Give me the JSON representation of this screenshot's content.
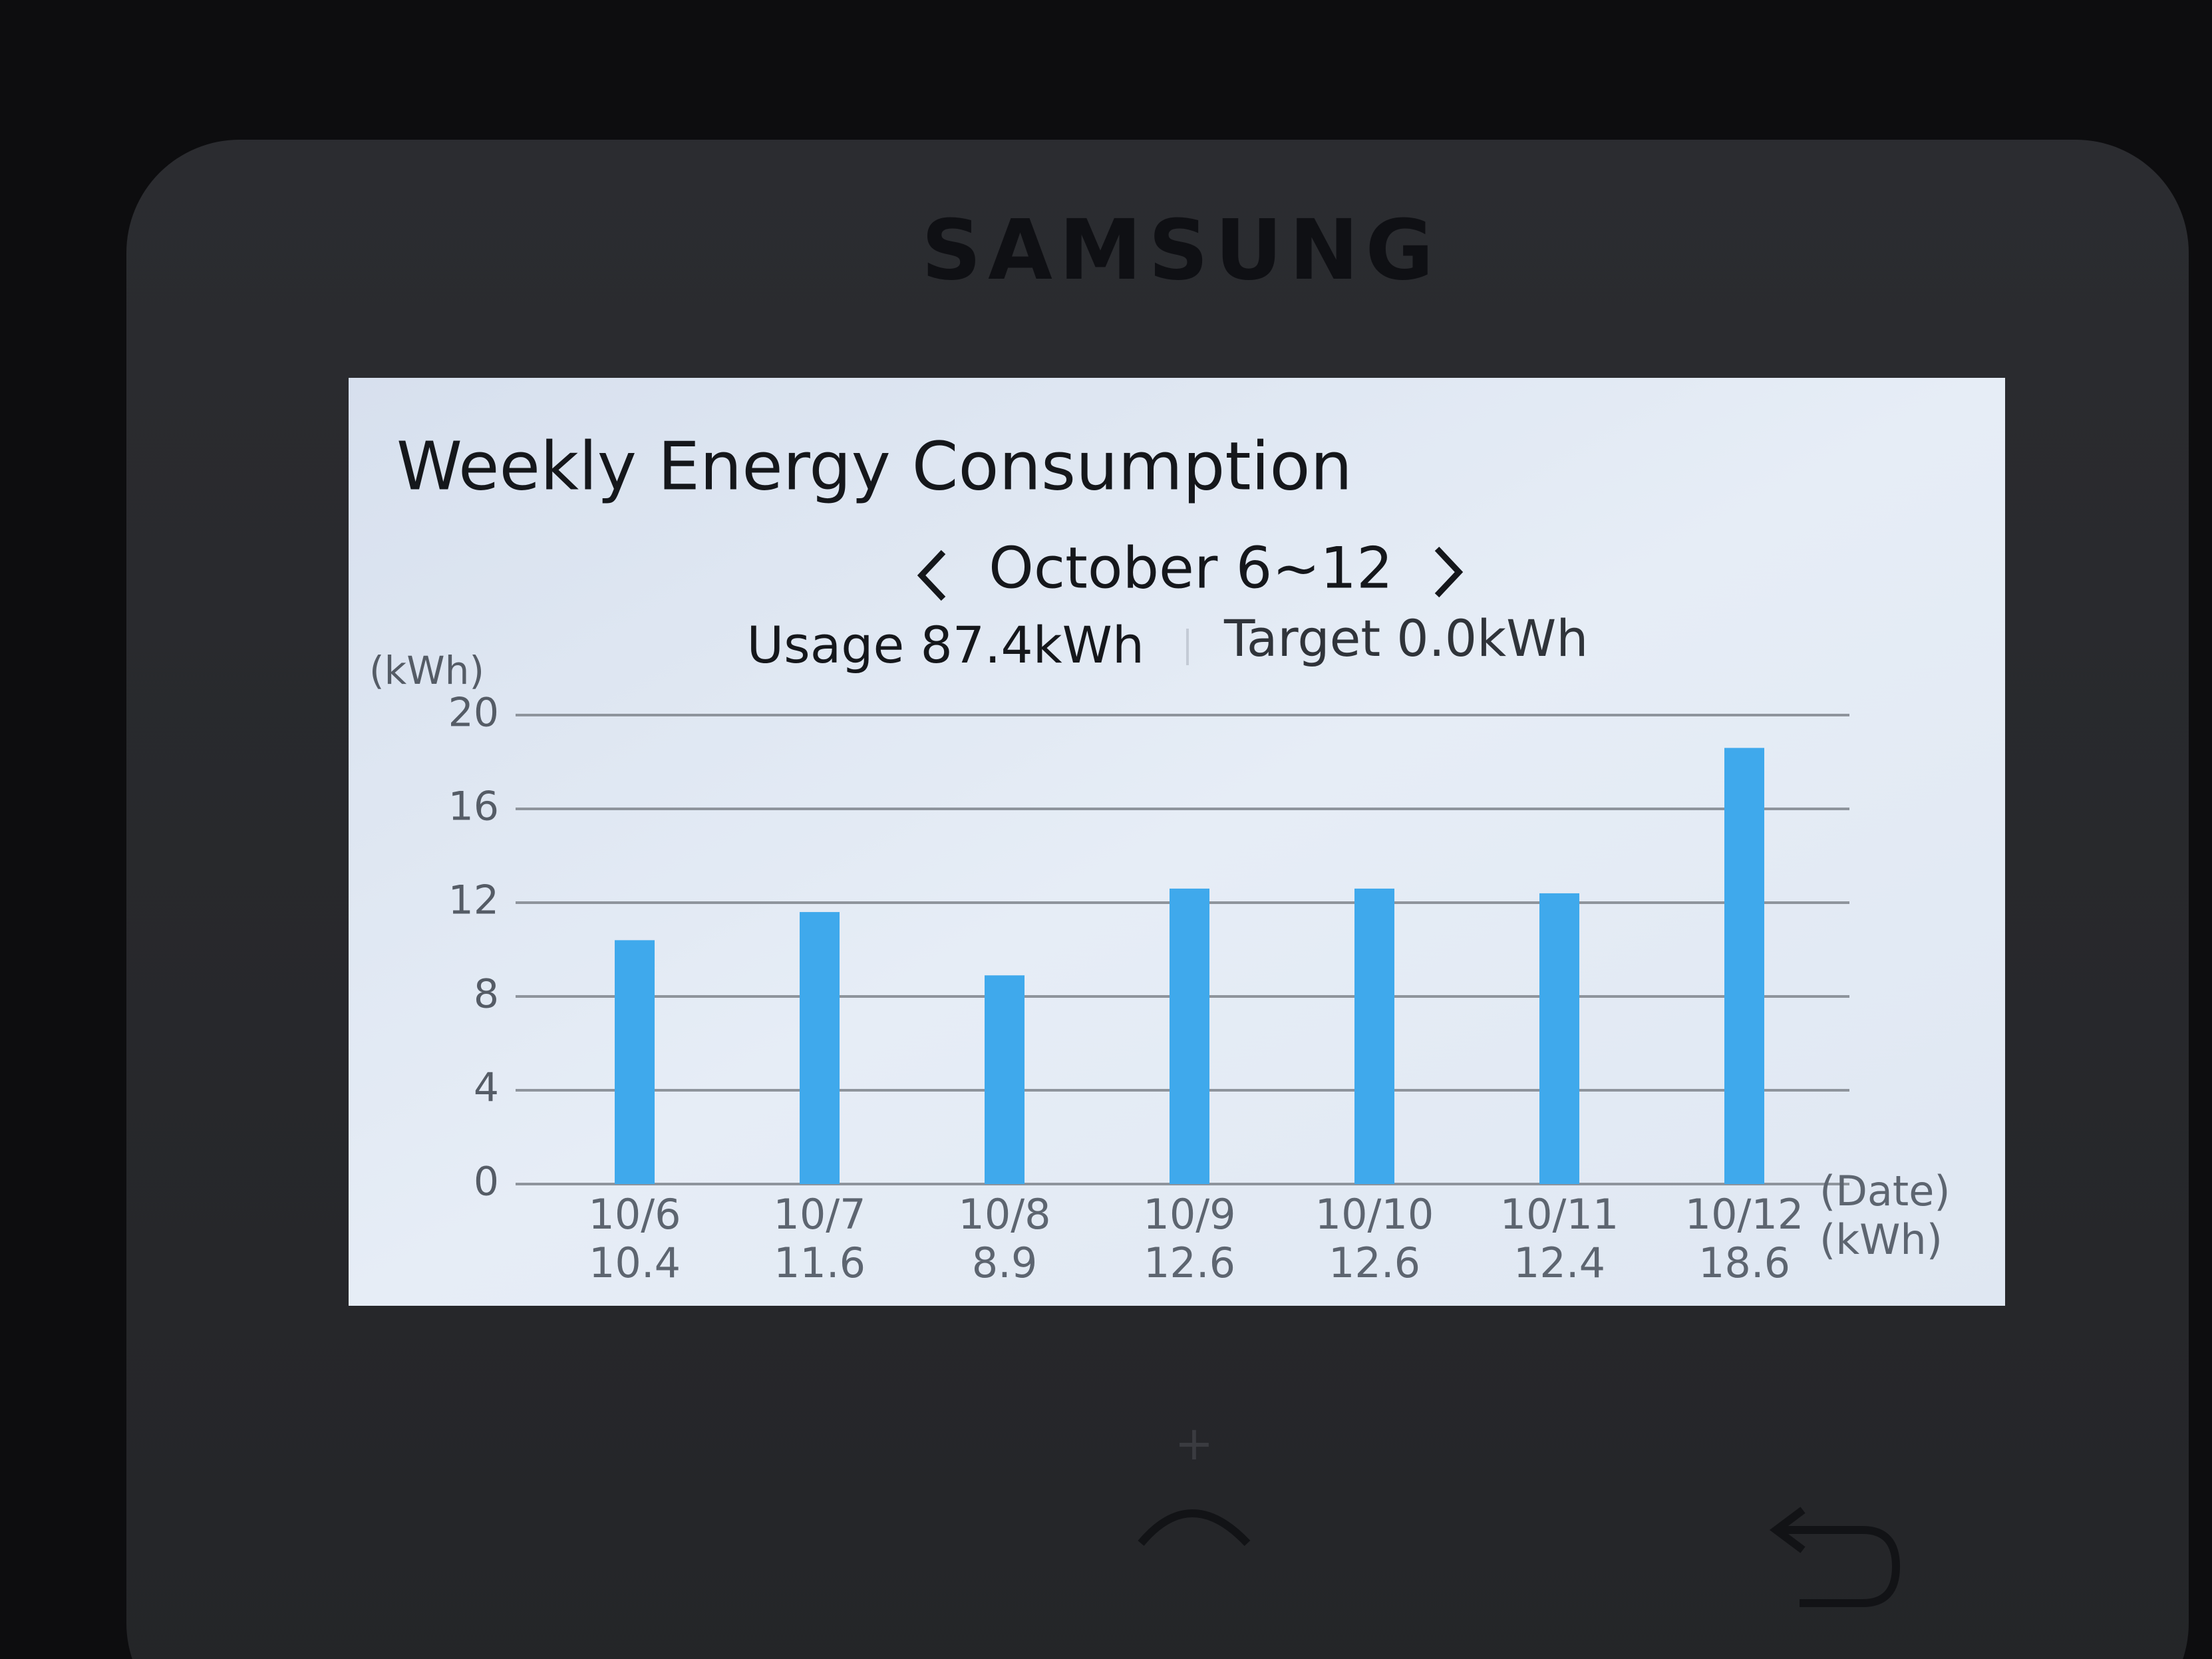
{
  "brand": "SAMSUNG",
  "chart_data": {
    "type": "bar",
    "title": "Weekly Energy Consumption",
    "subtitle": "October 6~12",
    "usage": "Usage 87.4kWh",
    "target": "Target 0.0kWh",
    "y_label": "(kWh)",
    "x_label": "(Date)",
    "value_row_label": "(kWh)",
    "categories": [
      "10/6",
      "10/7",
      "10/8",
      "10/9",
      "10/10",
      "10/11",
      "10/12"
    ],
    "values": [
      10.4,
      11.6,
      8.9,
      12.6,
      12.6,
      12.4,
      18.6
    ],
    "color": "#3fa9ec",
    "ylim": [
      0,
      20
    ],
    "yticks": [
      0,
      4,
      8,
      12,
      16,
      20
    ],
    "grid": true
  }
}
